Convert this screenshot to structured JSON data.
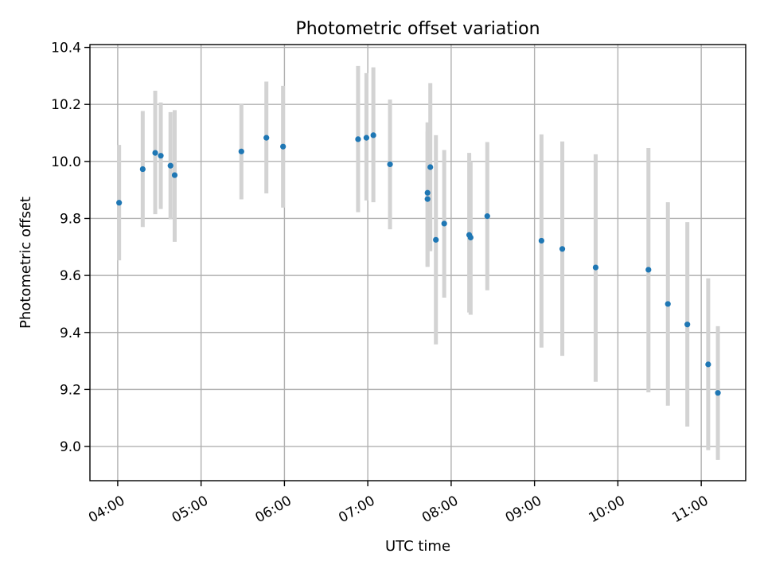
{
  "chart_data": {
    "type": "scatter",
    "title": "Photometric offset variation",
    "xlabel": "UTC time",
    "ylabel": "Photometric offset",
    "xlim": [
      "03:40",
      "11:32"
    ],
    "ylim": [
      8.88,
      10.41
    ],
    "x_ticks": [
      "04:00",
      "05:00",
      "06:00",
      "07:00",
      "08:00",
      "09:00",
      "10:00",
      "11:00"
    ],
    "y_ticks": [
      "9.0",
      "9.2",
      "9.4",
      "9.6",
      "9.8",
      "10.0",
      "10.2",
      "10.4"
    ],
    "grid": true,
    "series": [
      {
        "marker_color": "#1f77b4",
        "errorbar_color": "#d3d3d3",
        "points": [
          {
            "time": "04:01",
            "y": 9.855,
            "ylow": 9.653,
            "yhigh": 10.058
          },
          {
            "time": "04:18",
            "y": 9.973,
            "ylow": 9.77,
            "yhigh": 10.177
          },
          {
            "time": "04:27",
            "y": 10.03,
            "ylow": 9.815,
            "yhigh": 10.248
          },
          {
            "time": "04:31",
            "y": 10.02,
            "ylow": 9.833,
            "yhigh": 10.207
          },
          {
            "time": "04:38",
            "y": 9.985,
            "ylow": 9.797,
            "yhigh": 10.173
          },
          {
            "time": "04:41",
            "y": 9.952,
            "ylow": 9.718,
            "yhigh": 10.18
          },
          {
            "time": "05:29",
            "y": 10.035,
            "ylow": 9.867,
            "yhigh": 10.203
          },
          {
            "time": "05:47",
            "y": 10.083,
            "ylow": 9.888,
            "yhigh": 10.28
          },
          {
            "time": "05:59",
            "y": 10.052,
            "ylow": 9.838,
            "yhigh": 10.265
          },
          {
            "time": "06:53",
            "y": 10.078,
            "ylow": 9.822,
            "yhigh": 10.335
          },
          {
            "time": "06:59",
            "y": 10.083,
            "ylow": 9.863,
            "yhigh": 10.31
          },
          {
            "time": "07:04",
            "y": 10.092,
            "ylow": 9.857,
            "yhigh": 10.33
          },
          {
            "time": "07:16",
            "y": 9.99,
            "ylow": 9.762,
            "yhigh": 10.217
          },
          {
            "time": "07:43",
            "y": 9.89,
            "ylow": 9.63,
            "yhigh": 10.137
          },
          {
            "time": "07:43",
            "y": 9.868,
            "ylow": 9.632,
            "yhigh": 10.105
          },
          {
            "time": "07:45",
            "y": 9.98,
            "ylow": 9.685,
            "yhigh": 10.275
          },
          {
            "time": "07:49",
            "y": 9.725,
            "ylow": 9.358,
            "yhigh": 10.092
          },
          {
            "time": "07:55",
            "y": 9.782,
            "ylow": 9.522,
            "yhigh": 10.04
          },
          {
            "time": "08:13",
            "y": 9.742,
            "ylow": 9.47,
            "yhigh": 10.03
          },
          {
            "time": "08:14",
            "y": 9.733,
            "ylow": 9.462,
            "yhigh": 10.0
          },
          {
            "time": "08:26",
            "y": 9.808,
            "ylow": 9.548,
            "yhigh": 10.068
          },
          {
            "time": "09:05",
            "y": 9.722,
            "ylow": 9.347,
            "yhigh": 10.095
          },
          {
            "time": "09:20",
            "y": 9.693,
            "ylow": 9.318,
            "yhigh": 10.07
          },
          {
            "time": "09:44",
            "y": 9.628,
            "ylow": 9.227,
            "yhigh": 10.025
          },
          {
            "time": "10:22",
            "y": 9.62,
            "ylow": 9.19,
            "yhigh": 10.047
          },
          {
            "time": "10:36",
            "y": 9.5,
            "ylow": 9.143,
            "yhigh": 9.857
          },
          {
            "time": "10:50",
            "y": 9.428,
            "ylow": 9.07,
            "yhigh": 9.787
          },
          {
            "time": "11:05",
            "y": 9.288,
            "ylow": 8.987,
            "yhigh": 9.59
          },
          {
            "time": "11:12",
            "y": 9.188,
            "ylow": 8.953,
            "yhigh": 9.422
          }
        ]
      }
    ]
  }
}
